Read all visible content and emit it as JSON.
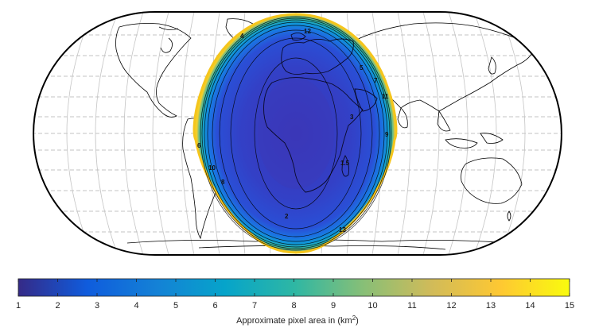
{
  "map": {
    "projection": "Eckert IV",
    "colormap": "parula",
    "contour_levels": [
      "1.5",
      "2",
      "3",
      "4",
      "5",
      "6",
      "7",
      "8",
      "9",
      "10",
      "11",
      "12",
      "13"
    ],
    "contour_labels_shown": [
      "2",
      "1.5",
      "3",
      "4",
      "5",
      "6",
      "7",
      "8",
      "9",
      "10",
      "11",
      "12",
      "13"
    ],
    "colors": {
      "land_outline": "#000000",
      "graticule": "#bbbbbb",
      "frame": "#000000",
      "contour_line": "#000000"
    }
  },
  "colorbar": {
    "ticks": [
      "1",
      "2",
      "3",
      "4",
      "5",
      "6",
      "7",
      "8",
      "9",
      "10",
      "11",
      "12",
      "13",
      "14",
      "15"
    ],
    "range": [
      1,
      15
    ],
    "label_prefix": "Approximate pixel area in (km",
    "label_superscript": "2",
    "label_suffix": ")",
    "colors": [
      "#352a87",
      "#0f5cdd",
      "#1481d6",
      "#06a4ca",
      "#2eb7a4",
      "#87bf77",
      "#d1bb59",
      "#fec832",
      "#f9fb0e"
    ]
  }
}
